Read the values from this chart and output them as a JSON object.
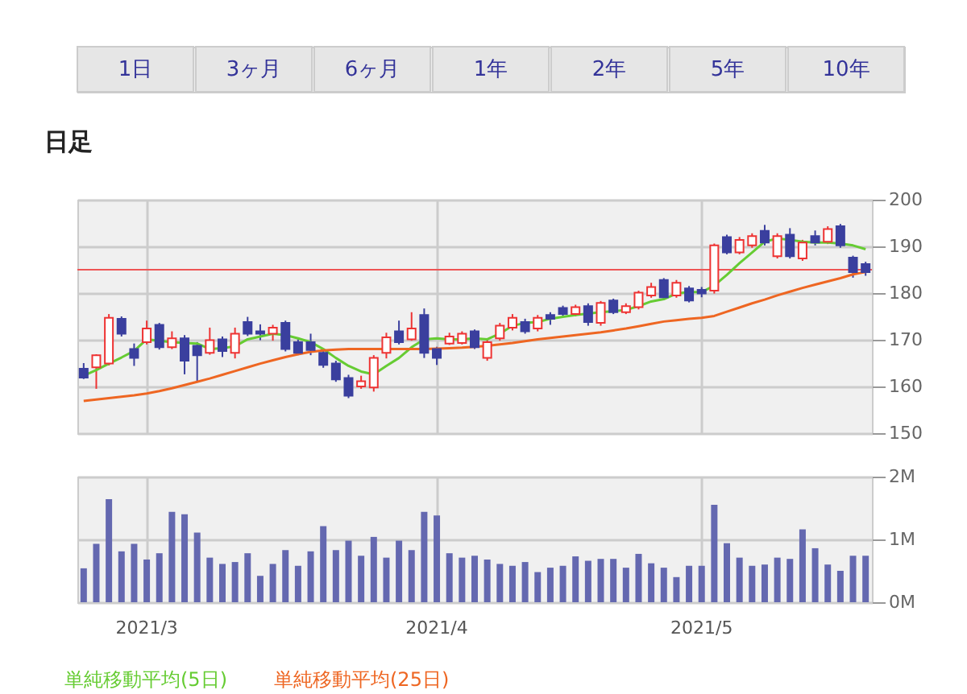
{
  "chart_data": [
    {
      "type": "candlestick",
      "title": "日足",
      "annotations": [
        "1日",
        "3ヶ月",
        "6ヶ月",
        "1年",
        "2年",
        "5年",
        "10年"
      ],
      "categories": [
        null,
        null,
        null,
        null,
        null,
        "2021/3",
        null,
        null,
        null,
        null,
        null,
        null,
        null,
        null,
        null,
        null,
        null,
        null,
        null,
        null,
        null,
        null,
        null,
        null,
        null,
        null,
        null,
        null,
        "2021/4",
        null,
        null,
        null,
        null,
        null,
        null,
        null,
        null,
        null,
        null,
        null,
        null,
        null,
        null,
        null,
        null,
        null,
        null,
        null,
        null,
        "2021/5",
        null,
        null,
        null,
        null,
        null,
        null,
        null,
        null,
        null,
        null,
        null,
        null,
        null
      ],
      "ohlc": [
        [
          163.8,
          165,
          161.6,
          161.9
        ],
        [
          164.1,
          166.9,
          159.5,
          166.7
        ],
        [
          164.9,
          175.5,
          164.5,
          174.7
        ],
        [
          174.5,
          175,
          170.7,
          171.3
        ],
        [
          168,
          169.2,
          164.4,
          166.1
        ],
        [
          169.5,
          174.1,
          169,
          172.4
        ],
        [
          173.2,
          173.6,
          167.9,
          168.4
        ],
        [
          168.4,
          171.8,
          168,
          170.3
        ],
        [
          170.3,
          171,
          162.6,
          165.5
        ],
        [
          168.7,
          169.5,
          161.1,
          166.7
        ],
        [
          167.2,
          172.6,
          166.8,
          169.9
        ],
        [
          170.1,
          170.7,
          166.3,
          167.6
        ],
        [
          167.2,
          172.6,
          166,
          171.3
        ],
        [
          173.8,
          174.9,
          170.8,
          171.3
        ],
        [
          171.8,
          173.3,
          169.9,
          171.3
        ],
        [
          171.3,
          173.2,
          169.8,
          172.6
        ],
        [
          173.6,
          174.1,
          167.5,
          168
        ],
        [
          169.5,
          170.1,
          166.7,
          167.2
        ],
        [
          169.5,
          171.3,
          166.7,
          167.8
        ],
        [
          167.2,
          168,
          164,
          164.6
        ],
        [
          164.9,
          165.5,
          161,
          161.5
        ],
        [
          161.8,
          162.5,
          157.5,
          158
        ],
        [
          160,
          162.3,
          159.5,
          161.1
        ],
        [
          159.8,
          166.7,
          158.9,
          166.1
        ],
        [
          167.2,
          171.5,
          166,
          170.5
        ],
        [
          171.8,
          174.1,
          169,
          169.5
        ],
        [
          170.1,
          175.9,
          169.8,
          172.4
        ],
        [
          175.3,
          176.7,
          166.1,
          167.2
        ],
        [
          168,
          168.5,
          164.6,
          166.1
        ],
        [
          169.2,
          171.5,
          168.9,
          170.7
        ],
        [
          169.3,
          171.8,
          169,
          171.3
        ],
        [
          171.8,
          172.2,
          168,
          168.4
        ],
        [
          166.1,
          170,
          165.5,
          169.5
        ],
        [
          170.3,
          173.6,
          169.8,
          173
        ],
        [
          172.6,
          175.5,
          172,
          174.7
        ],
        [
          173.8,
          174.5,
          171.3,
          171.8
        ],
        [
          172.4,
          175.3,
          171.8,
          174.7
        ],
        [
          175.3,
          175.9,
          173.2,
          174.5
        ],
        [
          176.8,
          177.3,
          174.9,
          175.5
        ],
        [
          175.5,
          177.5,
          175,
          177
        ],
        [
          177.2,
          177.8,
          173,
          173.8
        ],
        [
          173.6,
          178.3,
          173,
          177.9
        ],
        [
          178.4,
          178.8,
          175.5,
          175.9
        ],
        [
          175.9,
          177.8,
          175.5,
          177.2
        ],
        [
          177,
          180.5,
          176.5,
          180.1
        ],
        [
          179.5,
          182.2,
          179,
          181.3
        ],
        [
          182.8,
          183.2,
          178.6,
          179.1
        ],
        [
          179.5,
          182.8,
          179,
          182.2
        ],
        [
          181,
          181.5,
          178,
          178.4
        ],
        [
          180.7,
          181.3,
          179.1,
          179.9
        ],
        [
          180.5,
          190.6,
          179.9,
          190.2
        ],
        [
          192,
          192.5,
          188.3,
          188.7
        ],
        [
          188.7,
          192,
          188.3,
          191.4
        ],
        [
          190.2,
          192.8,
          189.7,
          192.2
        ],
        [
          193.3,
          194.6,
          190.2,
          190.8
        ],
        [
          187.9,
          192.8,
          187.4,
          192.2
        ],
        [
          192.5,
          193.9,
          187.4,
          187.9
        ],
        [
          187.4,
          191.4,
          186.9,
          190.8
        ],
        [
          192.2,
          193.4,
          190.2,
          190.8
        ],
        [
          191,
          194.3,
          190.5,
          193.7
        ],
        [
          194.3,
          194.8,
          189.7,
          190.2
        ],
        [
          187.6,
          188,
          183.3,
          184.5
        ],
        [
          186.2,
          186.7,
          183.7,
          184.5
        ]
      ],
      "colors": [
        "#3a3f9e",
        "#ee3333",
        "#ee3333",
        "#3a3f9e",
        "#3a3f9e",
        "#ee3333",
        "#3a3f9e",
        "#ee3333",
        "#3a3f9e",
        "#3a3f9e",
        "#ee3333",
        "#3a3f9e",
        "#ee3333",
        "#3a3f9e",
        "#3a3f9e",
        "#ee3333",
        "#3a3f9e",
        "#3a3f9e",
        "#3a3f9e",
        "#3a3f9e",
        "#3a3f9e",
        "#3a3f9e",
        "#ee3333",
        "#ee3333",
        "#ee3333",
        "#3a3f9e",
        "#ee3333",
        "#3a3f9e",
        "#3a3f9e",
        "#ee3333",
        "#ee3333",
        "#3a3f9e",
        "#ee3333",
        "#ee3333",
        "#ee3333",
        "#3a3f9e",
        "#ee3333",
        "#3a3f9e",
        "#3a3f9e",
        "#ee3333",
        "#3a3f9e",
        "#ee3333",
        "#3a3f9e",
        "#ee3333",
        "#ee3333",
        "#ee3333",
        "#3a3f9e",
        "#ee3333",
        "#3a3f9e",
        "#3a3f9e",
        "#ee3333",
        "#3a3f9e",
        "#ee3333",
        "#ee3333",
        "#3a3f9e",
        "#ee3333",
        "#3a3f9e",
        "#ee3333",
        "#3a3f9e",
        "#ee3333",
        "#3a3f9e",
        "#3a3f9e",
        "#3a3f9e"
      ],
      "series": [
        {
          "name": "単純移動平均(5日)",
          "type": "line",
          "color": "#66cc33",
          "values": [
            162.3,
            163.5,
            164.9,
            166.2,
            167.6,
            170.1,
            169.8,
            169.5,
            169.3,
            169.2,
            168,
            168.2,
            168.6,
            170.1,
            170.7,
            171.3,
            171,
            170.3,
            169.5,
            168,
            166.1,
            164.4,
            163.2,
            162.6,
            164.4,
            166.1,
            168.4,
            170.1,
            170.3,
            170.1,
            170.1,
            170.3,
            170.1,
            171.3,
            173,
            173.6,
            173.8,
            174.5,
            174.9,
            175.3,
            175.6,
            175.9,
            176.1,
            176.4,
            177.2,
            178.2,
            178.7,
            179.9,
            180.2,
            180.2,
            181.6,
            183.9,
            186.4,
            188.7,
            191,
            191.7,
            191.4,
            191,
            190.8,
            190.8,
            190.6,
            190.2,
            189.4
          ]
        },
        {
          "name": "単純移動平均(25日)",
          "type": "line",
          "color": "#ee6622",
          "values": [
            156.9,
            157.2,
            157.5,
            157.8,
            158.1,
            158.5,
            159,
            159.6,
            160.3,
            161,
            161.7,
            162.5,
            163.3,
            164.1,
            164.9,
            165.6,
            166.3,
            166.9,
            167.4,
            167.7,
            167.9,
            168,
            168,
            168,
            168,
            168,
            168,
            168,
            168.1,
            168.2,
            168.3,
            168.5,
            168.7,
            169,
            169.3,
            169.7,
            170.1,
            170.4,
            170.7,
            171,
            171.3,
            171.6,
            172,
            172.4,
            172.9,
            173.4,
            173.9,
            174.2,
            174.5,
            174.7,
            175.1,
            176,
            176.9,
            177.8,
            178.6,
            179.5,
            180.3,
            181.1,
            181.8,
            182.5,
            183.2,
            184,
            184.5
          ]
        }
      ],
      "ylim": [
        150,
        200
      ],
      "yticks": [
        150,
        160,
        170,
        180,
        190,
        200
      ],
      "ref_lines": [
        {
          "axis": "y",
          "value": 185,
          "color": "#ee5555"
        }
      ],
      "grid": true,
      "tick_labels": "y",
      "legend": "bottom"
    },
    {
      "type": "bar",
      "categories": [
        null,
        null,
        null,
        null,
        null,
        "2021/3",
        null,
        null,
        null,
        null,
        null,
        null,
        null,
        null,
        null,
        null,
        null,
        null,
        null,
        null,
        null,
        null,
        null,
        null,
        null,
        null,
        null,
        null,
        "2021/4",
        null,
        null,
        null,
        null,
        null,
        null,
        null,
        null,
        null,
        null,
        null,
        null,
        null,
        null,
        null,
        null,
        null,
        null,
        null,
        null,
        "2021/5",
        null,
        null,
        null,
        null,
        null,
        null,
        null,
        null,
        null,
        null,
        null,
        null,
        null
      ],
      "values": [
        0.54,
        0.93,
        1.64,
        0.81,
        0.93,
        0.68,
        0.78,
        1.44,
        1.4,
        1.11,
        0.71,
        0.61,
        0.64,
        0.78,
        0.42,
        0.61,
        0.83,
        0.58,
        0.81,
        1.21,
        0.83,
        0.98,
        0.74,
        1.04,
        0.71,
        0.98,
        0.83,
        1.44,
        1.38,
        0.78,
        0.71,
        0.74,
        0.68,
        0.61,
        0.58,
        0.64,
        0.48,
        0.55,
        0.58,
        0.73,
        0.66,
        0.69,
        0.69,
        0.55,
        0.77,
        0.62,
        0.55,
        0.4,
        0.58,
        0.58,
        1.55,
        0.94,
        0.71,
        0.58,
        0.6,
        0.71,
        0.69,
        1.16,
        0.86,
        0.6,
        0.5,
        0.74,
        0.74
      ],
      "color": "#6468b0",
      "ylim": [
        0,
        2
      ],
      "yticks": [
        {
          "value": 0,
          "label": "0M"
        },
        {
          "value": 1,
          "label": "1M"
        },
        {
          "value": 2,
          "label": "2M"
        }
      ],
      "grid": true
    }
  ]
}
